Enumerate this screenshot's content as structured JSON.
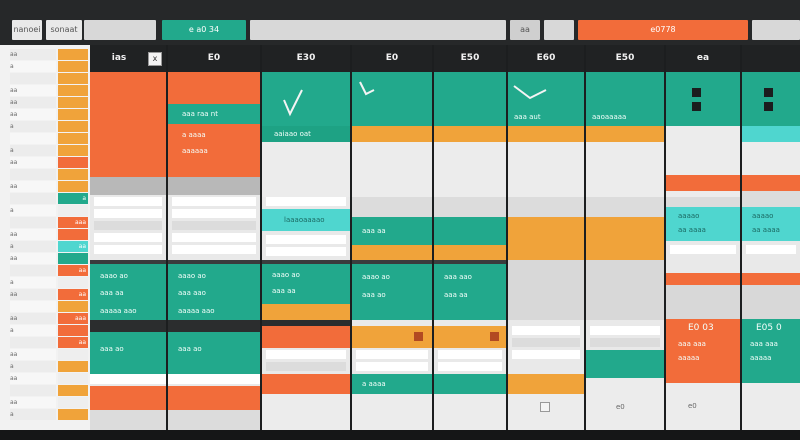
{
  "colors": {
    "orange": "#f26c3a",
    "teal": "#22a98c",
    "cyan": "#4fd6cf",
    "amber": "#f0a33a",
    "dark": "#202223",
    "light": "#f2f2f2"
  },
  "top_tabs": [
    {
      "label": "nanoei",
      "color": "#e9e9e9"
    },
    {
      "label": "sonaat",
      "color": "#e9e9e9"
    },
    {
      "label": "",
      "color": "#d8d8d8"
    },
    {
      "label": "e a0 34",
      "color": "#22a98c"
    },
    {
      "label": "",
      "color": "#d8d8d8"
    },
    {
      "label": "aa",
      "color": "#cfcfcf"
    },
    {
      "label": "",
      "color": "#d8d8d8"
    },
    {
      "label": "e0778",
      "color": "#f26c3a"
    },
    {
      "label": "",
      "color": "#d8d8d8"
    }
  ],
  "columns": [
    {
      "head": "ias",
      "checkbox": "x"
    },
    {
      "head": "E0"
    },
    {
      "head": "E30"
    },
    {
      "head": "E0"
    },
    {
      "head": "E50"
    },
    {
      "head": "E60"
    },
    {
      "head": "E50"
    },
    {
      "head": "ea"
    },
    {
      "head": "",
      "checkbox": "x"
    }
  ],
  "labels": {
    "c3_mid": "aaiaao oat",
    "c3_low": "laaaoaaaao",
    "c2_r1": "aaa raa nt",
    "c6_r1": "aaa aut",
    "c7_r1": "aaoaaaaa",
    "box_a": "aaao ao",
    "box_b": "aaa aa",
    "box_c": "aaaaa aao",
    "box_d": "aaa ao",
    "box_e": "a aaaa",
    "box_f": "aaaaaa",
    "box_g": "aaa aao",
    "e03": "E0 03",
    "e05": "E05 0",
    "low_a": "aaa aaa",
    "low_b": "aaaaa",
    "e0": "e0",
    "c9_a": "aaaao",
    "c9_b": "aa aaaa"
  },
  "sheet_rows": [
    {
      "l": "aa",
      "r": "",
      "rc": "#f0a33a"
    },
    {
      "l": "a",
      "r": "",
      "rc": "#f0a33a"
    },
    {
      "l": "",
      "r": "",
      "rc": "#f0a33a"
    },
    {
      "l": "aa",
      "r": "",
      "rc": "#f0a33a"
    },
    {
      "l": "aa",
      "r": "",
      "rc": "#f0a33a"
    },
    {
      "l": "aa",
      "r": "",
      "rc": "#f0a33a"
    },
    {
      "l": "a",
      "r": "",
      "rc": "#f0a33a"
    },
    {
      "l": "",
      "r": "",
      "rc": "#f0a33a"
    },
    {
      "l": "a",
      "r": "",
      "rc": "#f0a33a"
    },
    {
      "l": "aa",
      "r": "",
      "rc": "#f26c3a"
    },
    {
      "l": "",
      "r": "",
      "rc": "#f0a33a"
    },
    {
      "l": "aa",
      "r": "",
      "rc": "#f0a33a"
    },
    {
      "l": "",
      "r": "a",
      "rc": "#22a98c"
    },
    {
      "l": "a",
      "r": "",
      "rc": "#eeeeee"
    },
    {
      "l": "",
      "r": "aaa",
      "rc": "#f26c3a"
    },
    {
      "l": "aa",
      "r": "",
      "rc": "#f26c3a"
    },
    {
      "l": "a",
      "r": "aa",
      "rc": "#4fd6cf"
    },
    {
      "l": "aa",
      "r": "",
      "rc": "#22a98c"
    },
    {
      "l": "",
      "r": "aa",
      "rc": "#f26c3a"
    },
    {
      "l": "a",
      "r": "",
      "rc": "#eeeeee"
    },
    {
      "l": "aa",
      "r": "aa",
      "rc": "#f26c3a"
    },
    {
      "l": "",
      "r": "",
      "rc": "#f0a33a"
    },
    {
      "l": "aa",
      "r": "aaa",
      "rc": "#f26c3a"
    },
    {
      "l": "a",
      "r": "",
      "rc": "#f26c3a"
    },
    {
      "l": "",
      "r": "aa",
      "rc": "#f26c3a"
    },
    {
      "l": "aa",
      "r": "",
      "rc": "#eeeeee"
    },
    {
      "l": "a",
      "r": "",
      "rc": "#f0a33a"
    },
    {
      "l": "aa",
      "r": "",
      "rc": "#eeeeee"
    },
    {
      "l": "",
      "r": "",
      "rc": "#f0a33a"
    },
    {
      "l": "aa",
      "r": "",
      "rc": "#eeeeee"
    },
    {
      "l": "a",
      "r": "",
      "rc": "#f0a33a"
    }
  ]
}
